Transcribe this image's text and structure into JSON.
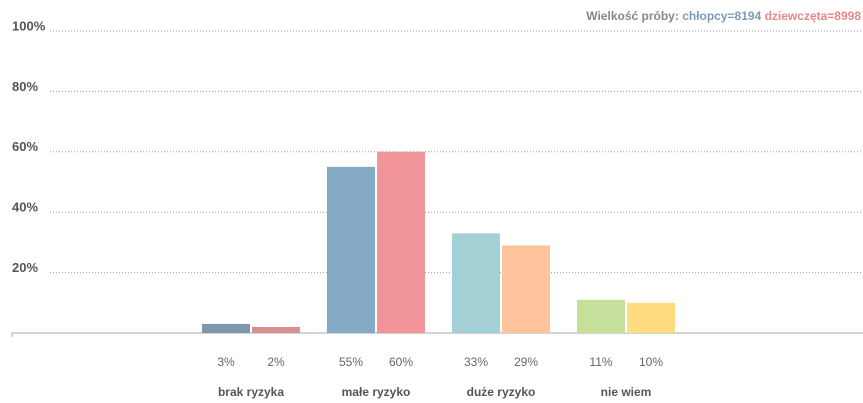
{
  "chart_data": {
    "type": "bar",
    "sample_label": "Wielkość próby:",
    "categories": [
      "brak ryzyka",
      "małe ryzyko",
      "duże ryzyko",
      "nie wiem"
    ],
    "series": [
      {
        "name": "chłopcy=8194",
        "color": "#7f9bb8",
        "colors": [
          "#7f97ae",
          "#84aac5",
          "#a3d0d4",
          "#c6e09c"
        ],
        "values": [
          3,
          55,
          33,
          11
        ],
        "value_labels": [
          "3%",
          "55%",
          "33%",
          "11%"
        ]
      },
      {
        "name": "dziewczęta=8998",
        "color": "#e8868c",
        "colors": [
          "#d98f8f",
          "#f2959b",
          "#ffc39e",
          "#ffdc80"
        ],
        "values": [
          2,
          60,
          29,
          10
        ],
        "value_labels": [
          "2%",
          "60%",
          "29%",
          "10%"
        ]
      }
    ],
    "ylim": [
      0,
      100
    ],
    "yticks": [
      {
        "value": 20,
        "label": "20%"
      },
      {
        "value": 40,
        "label": "40%"
      },
      {
        "value": 60,
        "label": "60%"
      },
      {
        "value": 80,
        "label": "80%"
      },
      {
        "value": 100,
        "label": "100%"
      }
    ],
    "grid": true
  }
}
